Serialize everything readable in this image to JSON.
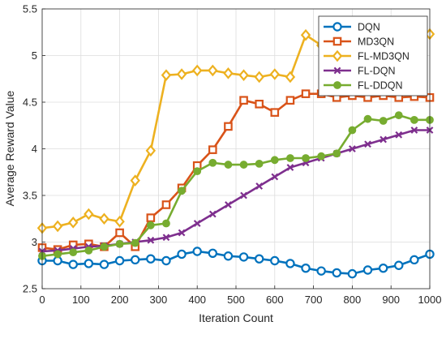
{
  "chart_data": {
    "type": "line",
    "title": "",
    "xlabel": "Iteration Count",
    "ylabel": "Average Reward Value",
    "xlim": [
      0,
      1000
    ],
    "ylim": [
      2.5,
      5.5
    ],
    "grid": true,
    "legend_position": "top-right",
    "x_ticks": [
      0,
      100,
      200,
      300,
      400,
      500,
      600,
      700,
      800,
      900,
      1000
    ],
    "y_ticks": [
      2.5,
      3,
      3.5,
      4,
      4.5,
      5,
      5.5
    ],
    "x_tick_labels": [
      "0",
      "100",
      "200",
      "300",
      "400",
      "500",
      "600",
      "700",
      "800",
      "900",
      "1000"
    ],
    "y_tick_labels": [
      "2.5",
      "3",
      "3.5",
      "4",
      "4.5",
      "5",
      "5.5"
    ],
    "x": [
      0,
      40,
      80,
      120,
      160,
      200,
      240,
      280,
      320,
      360,
      400,
      440,
      480,
      520,
      560,
      600,
      640,
      680,
      720,
      760,
      800,
      840,
      880,
      920,
      960,
      1000
    ],
    "series": [
      {
        "name": "DQN",
        "color": "#0072BD",
        "marker": "circle",
        "values": [
          2.8,
          2.8,
          2.76,
          2.77,
          2.76,
          2.8,
          2.81,
          2.82,
          2.8,
          2.87,
          2.9,
          2.88,
          2.85,
          2.84,
          2.82,
          2.8,
          2.77,
          2.72,
          2.69,
          2.67,
          2.66,
          2.7,
          2.72,
          2.75,
          2.81,
          2.87
        ]
      },
      {
        "name": "MD3QN",
        "color": "#D95319",
        "marker": "square",
        "values": [
          2.94,
          2.92,
          2.97,
          2.98,
          2.95,
          3.1,
          2.95,
          3.26,
          3.4,
          3.58,
          3.82,
          3.99,
          4.24,
          4.52,
          4.48,
          4.39,
          4.52,
          4.59,
          4.59,
          4.55,
          4.57,
          4.55,
          4.57,
          4.55,
          4.56,
          4.55
        ]
      },
      {
        "name": "FL-MD3QN",
        "color": "#EDB120",
        "marker": "diamond",
        "values": [
          3.15,
          3.17,
          3.21,
          3.3,
          3.25,
          3.22,
          3.66,
          3.98,
          4.79,
          4.8,
          4.84,
          4.84,
          4.81,
          4.79,
          4.77,
          4.8,
          4.77,
          5.22,
          5.11,
          5.08,
          5.12,
          5.15,
          5.16,
          5.17,
          5.19,
          5.23
        ]
      },
      {
        "name": "FL-DQN",
        "color": "#7E2F8E",
        "marker": "x",
        "values": [
          2.9,
          2.91,
          2.93,
          2.95,
          2.96,
          2.98,
          3.0,
          3.02,
          3.05,
          3.1,
          3.2,
          3.3,
          3.4,
          3.5,
          3.6,
          3.7,
          3.8,
          3.85,
          3.9,
          3.95,
          4.0,
          4.05,
          4.1,
          4.15,
          4.2,
          4.2
        ]
      },
      {
        "name": "FL-DDQN",
        "color": "#77AC30",
        "marker": "circle-filled",
        "values": [
          2.85,
          2.87,
          2.89,
          2.91,
          2.95,
          2.98,
          2.99,
          3.18,
          3.2,
          3.55,
          3.76,
          3.85,
          3.83,
          3.83,
          3.84,
          3.88,
          3.9,
          3.9,
          3.92,
          3.95,
          4.2,
          4.32,
          4.3,
          4.36,
          4.31,
          4.31
        ]
      }
    ]
  }
}
